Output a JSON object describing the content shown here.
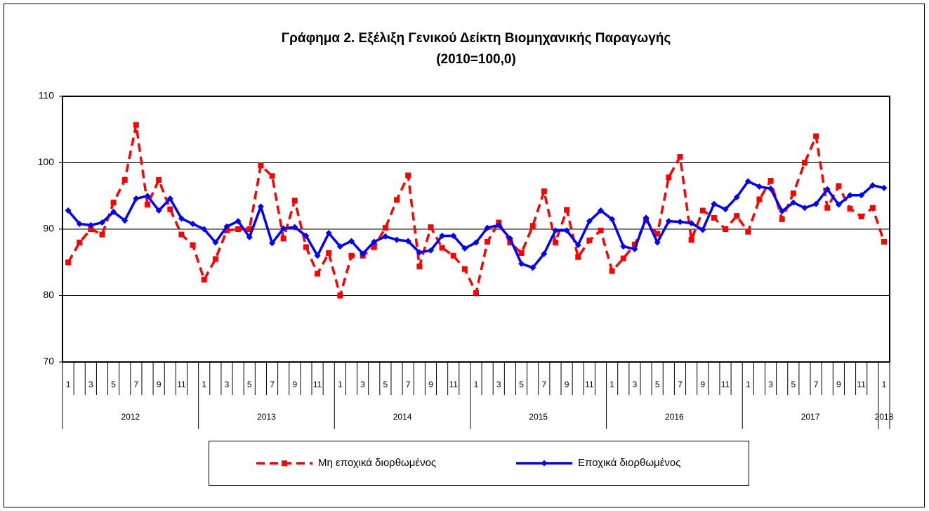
{
  "chart_data": {
    "type": "line",
    "title": "Γράφημα 2. Εξέλιξη Γενικού Δείκτη Βιομηχανικής Παραγωγής",
    "subtitle": "(2010=100,0)",
    "categories": [
      "1",
      null,
      "3",
      null,
      "5",
      null,
      "7",
      null,
      "9",
      null,
      "11",
      null,
      "1",
      null,
      "3",
      null,
      "5",
      null,
      "7",
      null,
      "9",
      null,
      "11",
      null,
      "1",
      null,
      "3",
      null,
      "5",
      null,
      "7",
      null,
      "9",
      null,
      "11",
      null,
      "1",
      null,
      "3",
      null,
      "5",
      null,
      "7",
      null,
      "9",
      null,
      "11",
      null,
      "1",
      null,
      "3",
      null,
      "5",
      null,
      "7",
      null,
      "9",
      null,
      "11",
      null,
      "1",
      null,
      "3",
      null,
      "5",
      null,
      "7",
      null,
      "9",
      null,
      "11",
      null,
      "1"
    ],
    "groups": [
      "2012",
      "2013",
      "2014",
      "2015",
      "2016",
      "2017",
      "2018"
    ],
    "series": [
      {
        "name": "Μη εποχικά διορθωμένος",
        "color": "#ff0000",
        "dashed": true,
        "marker": "square",
        "values": [
          85.0,
          88.0,
          90.0,
          89.2,
          94.0,
          97.4,
          105.7,
          93.7,
          97.4,
          93.0,
          89.2,
          87.6,
          82.4,
          85.5,
          89.8,
          90.0,
          90.0,
          99.6,
          98.0,
          88.6,
          94.3,
          87.3,
          83.3,
          86.4,
          80.0,
          86.0,
          86.0,
          87.3,
          90.2,
          94.4,
          98.1,
          84.4,
          90.3,
          87.2,
          86.0,
          84.0,
          80.4,
          88.1,
          91.0,
          88.0,
          86.4,
          90.5,
          95.7,
          88.0,
          92.9,
          85.8,
          88.3,
          89.8,
          83.7,
          85.6,
          87.7,
          91.3,
          89.3,
          97.8,
          100.9,
          88.4,
          92.8,
          91.7,
          90.0,
          92.0,
          89.6,
          94.5,
          97.3,
          91.5,
          95.4,
          100.0,
          104.0,
          93.2,
          96.5,
          93.1,
          91.9,
          93.2,
          88.1
        ]
      },
      {
        "name": "Εποχικά διορθωμένος",
        "color": "#0000ff",
        "dashed": false,
        "marker": "diamond",
        "values": [
          92.8,
          90.8,
          90.6,
          91.0,
          92.6,
          91.3,
          94.6,
          95.0,
          92.8,
          94.6,
          91.6,
          90.8,
          90.0,
          88.0,
          90.4,
          91.2,
          88.8,
          93.4,
          87.9,
          90.1,
          90.3,
          89.0,
          86.0,
          89.4,
          87.4,
          88.2,
          86.3,
          88.1,
          88.9,
          88.4,
          88.2,
          86.5,
          86.8,
          89.0,
          89.0,
          87.1,
          88.0,
          90.2,
          90.6,
          88.6,
          84.8,
          84.2,
          86.3,
          89.8,
          89.8,
          87.6,
          91.2,
          92.8,
          91.5,
          87.4,
          87.0,
          91.7,
          88.0,
          91.2,
          91.1,
          90.9,
          89.9,
          93.8,
          93.0,
          94.8,
          97.2,
          96.4,
          96.1,
          92.7,
          94.0,
          93.2,
          93.8,
          96.0,
          93.7,
          95.1,
          95.1,
          96.6,
          96.2
        ]
      }
    ],
    "ylim": [
      70,
      110
    ],
    "yticks": [
      70,
      80,
      90,
      100,
      110
    ],
    "grid": true,
    "legend": "bottom"
  }
}
